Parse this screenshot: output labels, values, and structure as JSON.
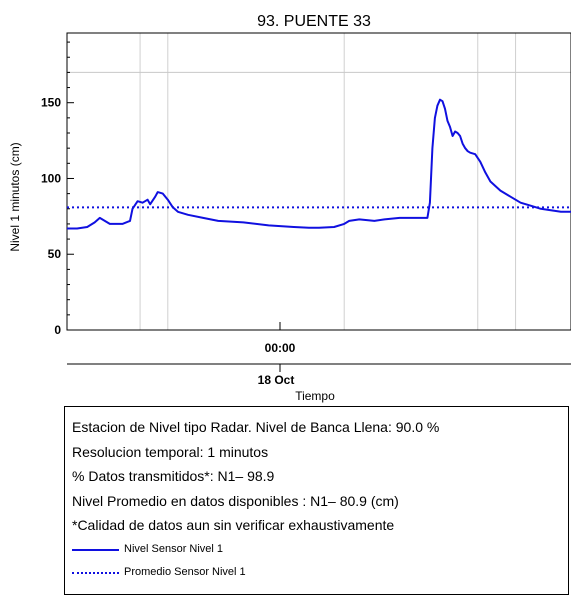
{
  "colors": {
    "series": "#1010e0",
    "grid": "#d0d0d0",
    "axis": "#000000"
  },
  "chart_data": {
    "type": "line",
    "title": "93. PUENTE 33",
    "ylabel": "Nivel 1 minutos (cm)",
    "xlabel": "Tiempo",
    "x_tick_label": "00:00",
    "date_label": "18 Oct",
    "ylim": [
      0,
      196
    ],
    "yticks": [
      0,
      50,
      100,
      150
    ],
    "grid": true,
    "reference_line": {
      "value": 170
    },
    "series": [
      {
        "name": "Nivel Sensor Nivel 1",
        "style": "solid",
        "points": [
          [
            0.0,
            67
          ],
          [
            0.02,
            67
          ],
          [
            0.04,
            68
          ],
          [
            0.055,
            71
          ],
          [
            0.065,
            74
          ],
          [
            0.075,
            72
          ],
          [
            0.085,
            70
          ],
          [
            0.11,
            70
          ],
          [
            0.125,
            72
          ],
          [
            0.13,
            80
          ],
          [
            0.14,
            85
          ],
          [
            0.15,
            84
          ],
          [
            0.16,
            86
          ],
          [
            0.165,
            83
          ],
          [
            0.175,
            88
          ],
          [
            0.18,
            91
          ],
          [
            0.19,
            90
          ],
          [
            0.2,
            86
          ],
          [
            0.21,
            81
          ],
          [
            0.22,
            78
          ],
          [
            0.24,
            76
          ],
          [
            0.27,
            74
          ],
          [
            0.3,
            72
          ],
          [
            0.35,
            71
          ],
          [
            0.4,
            69
          ],
          [
            0.45,
            68
          ],
          [
            0.48,
            67.5
          ],
          [
            0.5,
            67.5
          ],
          [
            0.53,
            68
          ],
          [
            0.55,
            70
          ],
          [
            0.56,
            72
          ],
          [
            0.58,
            73
          ],
          [
            0.61,
            72
          ],
          [
            0.63,
            73
          ],
          [
            0.66,
            74
          ],
          [
            0.7,
            74
          ],
          [
            0.715,
            74
          ],
          [
            0.72,
            84
          ],
          [
            0.725,
            120
          ],
          [
            0.73,
            140
          ],
          [
            0.735,
            148
          ],
          [
            0.74,
            152
          ],
          [
            0.745,
            151
          ],
          [
            0.75,
            146
          ],
          [
            0.755,
            138
          ],
          [
            0.76,
            134
          ],
          [
            0.765,
            128
          ],
          [
            0.77,
            131
          ],
          [
            0.775,
            130
          ],
          [
            0.78,
            128
          ],
          [
            0.785,
            123
          ],
          [
            0.79,
            120
          ],
          [
            0.795,
            118
          ],
          [
            0.8,
            117
          ],
          [
            0.81,
            116
          ],
          [
            0.82,
            111
          ],
          [
            0.83,
            104
          ],
          [
            0.84,
            98
          ],
          [
            0.86,
            92
          ],
          [
            0.88,
            88
          ],
          [
            0.9,
            84
          ],
          [
            0.92,
            82
          ],
          [
            0.94,
            80
          ],
          [
            0.96,
            79
          ],
          [
            0.98,
            78
          ],
          [
            1.0,
            78
          ]
        ]
      },
      {
        "name": "Promedio Sensor Nivel 1",
        "style": "dotted",
        "points": [
          [
            0.0,
            80.9
          ],
          [
            1.0,
            80.9
          ]
        ]
      }
    ]
  },
  "info": {
    "lines": [
      "Estacion de Nivel tipo Radar. Nivel de Banca Llena: 90.0 %",
      "Resolucion temporal: 1 minutos",
      "% Datos transmitidos*: N1– 98.9",
      "Nivel Promedio en datos disponibles : N1– 80.9 (cm)",
      "*Calidad de datos aun sin verificar exhaustivamente"
    ],
    "legend": [
      {
        "label": "Nivel Sensor Nivel 1",
        "style": "solid"
      },
      {
        "label": "Promedio Sensor Nivel 1",
        "style": "dotted"
      }
    ]
  }
}
